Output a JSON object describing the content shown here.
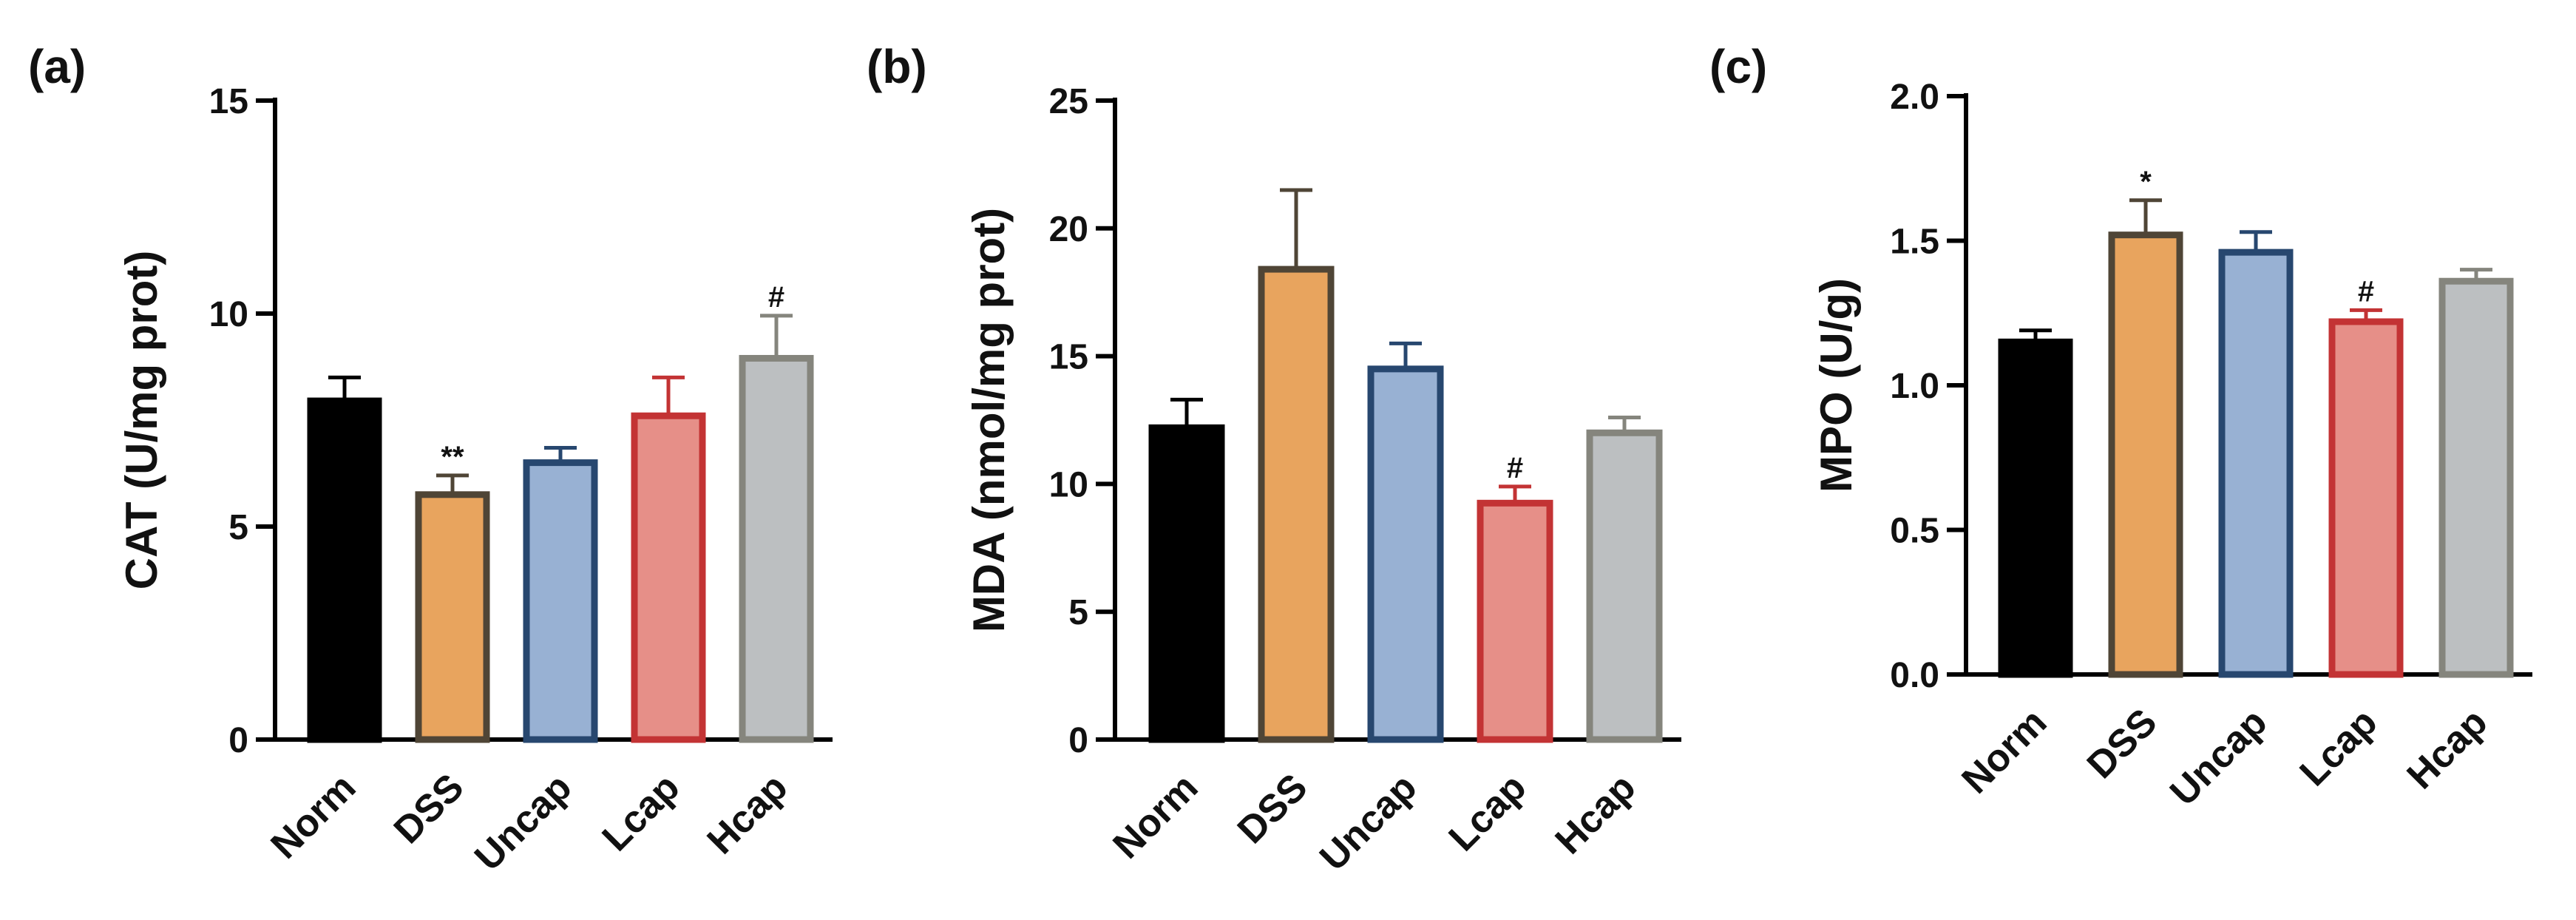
{
  "chart_data": [
    {
      "type": "bar",
      "panel_label": "(a)",
      "ylabel": "CAT (U/mg prot)",
      "xlabel": "",
      "ylim": [
        0,
        15
      ],
      "yticks": [
        "0",
        "5",
        "10",
        "15"
      ],
      "categories": [
        "Norm",
        "DSS",
        "Uncap",
        "Lcap",
        "Hcap"
      ],
      "values": [
        7.95,
        5.75,
        6.5,
        7.6,
        8.95
      ],
      "errors": [
        0.55,
        0.45,
        0.35,
        0.9,
        1.0
      ],
      "significance": [
        "",
        "**",
        "",
        "",
        "#"
      ],
      "fill_colors": [
        "#000000",
        "#e8a45e",
        "#98b1d3",
        "#e68f88",
        "#bcbfc1"
      ],
      "edge_colors": [
        "#000000",
        "#4f4536",
        "#27476f",
        "#c33334",
        "#85857d"
      ]
    },
    {
      "type": "bar",
      "panel_label": "(b)",
      "ylabel": "MDA (nmol/mg prot)",
      "xlabel": "",
      "ylim": [
        0,
        25
      ],
      "yticks": [
        "0",
        "5",
        "10",
        "15",
        "20",
        "25"
      ],
      "categories": [
        "Norm",
        "DSS",
        "Uncap",
        "Lcap",
        "Hcap"
      ],
      "values": [
        12.2,
        18.4,
        14.5,
        9.25,
        12.0
      ],
      "errors": [
        1.1,
        3.1,
        1.0,
        0.65,
        0.6
      ],
      "significance": [
        "",
        "",
        "",
        "#",
        ""
      ],
      "fill_colors": [
        "#000000",
        "#e8a45e",
        "#98b1d3",
        "#e68f88",
        "#bcbfc1"
      ],
      "edge_colors": [
        "#000000",
        "#4f4536",
        "#27476f",
        "#c33334",
        "#85857d"
      ]
    },
    {
      "type": "bar",
      "panel_label": "(c)",
      "ylabel": "MPO (U/g)",
      "xlabel": "",
      "ylim": [
        0,
        2.0
      ],
      "yticks": [
        "0.0",
        "0.5",
        "1.0",
        "1.5",
        "2.0"
      ],
      "categories": [
        "Norm",
        "DSS",
        "Uncap",
        "Lcap",
        "Hcap"
      ],
      "values": [
        1.15,
        1.52,
        1.46,
        1.22,
        1.36
      ],
      "errors": [
        0.04,
        0.12,
        0.07,
        0.04,
        0.04
      ],
      "significance": [
        "",
        "*",
        "",
        "#",
        ""
      ],
      "fill_colors": [
        "#000000",
        "#e8a45e",
        "#98b1d3",
        "#e68f88",
        "#bcbfc1"
      ],
      "edge_colors": [
        "#000000",
        "#4f4536",
        "#27476f",
        "#c33334",
        "#85857d"
      ]
    }
  ]
}
